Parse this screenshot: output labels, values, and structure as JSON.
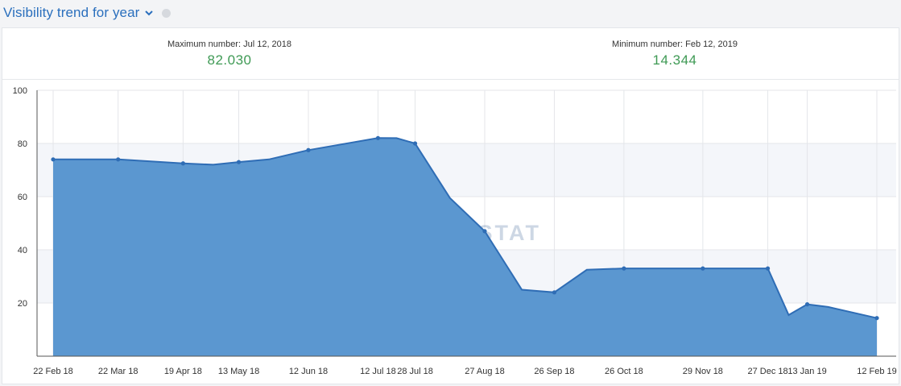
{
  "header": {
    "title": "Visibility trend for year"
  },
  "stats": {
    "max_label": "Maximum number: Jul 12, 2018",
    "max_value": "82.030",
    "min_label": "Minimum number: Feb 12, 2019",
    "min_value": "14.344"
  },
  "watermark": "SERPSTAT",
  "colors": {
    "accent": "#2a6fbd",
    "area": "#5b97d0",
    "line": "#2f6db5",
    "value_green": "#3f9a55"
  },
  "chart_data": {
    "type": "area",
    "title": "Visibility trend for year",
    "xlabel": "",
    "ylabel": "",
    "ylim": [
      0,
      100
    ],
    "yticks": [
      20,
      40,
      60,
      80,
      100
    ],
    "grid": true,
    "x_ticks": [
      "22 Feb 18",
      "22 Mar 18",
      "19 Apr 18",
      "13 May 18",
      "12 Jun 18",
      "12 Jul 18",
      "28 Jul 18",
      "27 Aug 18",
      "26 Sep 18",
      "26 Oct 18",
      "29 Nov 18",
      "27 Dec 18",
      "13 Jan 19",
      "12 Feb 19"
    ],
    "x": [
      "22 Feb 18",
      "22 Mar 18",
      "19 Apr 18",
      "2 May 18",
      "13 May 18",
      "26 May 18",
      "12 Jun 18",
      "12 Jul 18",
      "20 Jul 18",
      "28 Jul 18",
      "12 Aug 18",
      "27 Aug 18",
      "12 Sep 18",
      "26 Sep 18",
      "10 Oct 18",
      "26 Oct 18",
      "29 Nov 18",
      "27 Dec 18",
      "5 Jan 19",
      "13 Jan 19",
      "22 Jan 19",
      "12 Feb 19"
    ],
    "values": [
      74,
      74,
      72.5,
      72,
      73,
      74,
      77.5,
      82.03,
      82,
      80,
      59.5,
      47,
      25,
      24,
      32.5,
      33,
      33,
      33,
      15.5,
      19.5,
      18.5,
      14.344
    ],
    "markers": [
      true,
      true,
      true,
      false,
      true,
      false,
      true,
      true,
      false,
      true,
      false,
      true,
      false,
      true,
      false,
      true,
      true,
      true,
      false,
      true,
      false,
      true
    ]
  }
}
